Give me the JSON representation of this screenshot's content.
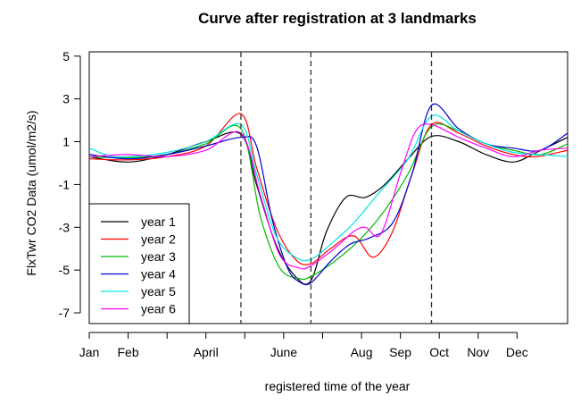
{
  "chart_data": {
    "type": "line",
    "title": "Curve after registration at 3 landmarks",
    "xlabel": "registered time of the year",
    "ylabel": "FlxTwr CO2 Data (umol/m2/s)",
    "xlim": [
      0,
      12.3
    ],
    "ylim": [
      -7.5,
      5.2
    ],
    "y_ticks": [
      5,
      3,
      1,
      -1,
      -3,
      -5,
      -7
    ],
    "x_ticks": [
      {
        "pos": 0,
        "label": "Jan"
      },
      {
        "pos": 1,
        "label": "Feb"
      },
      {
        "pos": 2,
        "label": ""
      },
      {
        "pos": 3,
        "label": "April"
      },
      {
        "pos": 4,
        "label": ""
      },
      {
        "pos": 5,
        "label": "June"
      },
      {
        "pos": 6,
        "label": ""
      },
      {
        "pos": 7,
        "label": "Aug"
      },
      {
        "pos": 8,
        "label": "Sep"
      },
      {
        "pos": 9,
        "label": "Oct"
      },
      {
        "pos": 10,
        "label": "Nov"
      },
      {
        "pos": 11,
        "label": "Dec"
      }
    ],
    "landmarks": [
      3.9,
      5.7,
      8.8
    ],
    "legend_position": "bottom-left",
    "series": [
      {
        "name": "year 1",
        "color": "#000000",
        "points": [
          [
            0,
            0.3
          ],
          [
            1,
            0.05
          ],
          [
            2,
            0.4
          ],
          [
            3,
            1.0
          ],
          [
            3.9,
            1.35
          ],
          [
            4.3,
            -1.0
          ],
          [
            4.8,
            -3.8
          ],
          [
            5.3,
            -5.3
          ],
          [
            5.7,
            -5.5
          ],
          [
            6.1,
            -3.2
          ],
          [
            6.6,
            -1.6
          ],
          [
            7.1,
            -1.6
          ],
          [
            7.6,
            -1.0
          ],
          [
            8.2,
            0.2
          ],
          [
            8.8,
            1.25
          ],
          [
            9.5,
            1.0
          ],
          [
            10.2,
            0.4
          ],
          [
            10.9,
            0.05
          ],
          [
            11.5,
            0.5
          ],
          [
            12.3,
            1.2
          ]
        ]
      },
      {
        "name": "year 2",
        "color": "#ff0000",
        "points": [
          [
            0,
            0.2
          ],
          [
            1,
            0.15
          ],
          [
            2,
            0.3
          ],
          [
            3,
            0.8
          ],
          [
            3.9,
            2.3
          ],
          [
            4.3,
            -0.2
          ],
          [
            4.8,
            -3.0
          ],
          [
            5.3,
            -4.5
          ],
          [
            5.7,
            -4.7
          ],
          [
            6.2,
            -4.0
          ],
          [
            6.8,
            -3.4
          ],
          [
            7.3,
            -4.4
          ],
          [
            7.8,
            -3.2
          ],
          [
            8.3,
            -0.5
          ],
          [
            8.8,
            1.8
          ],
          [
            9.5,
            1.4
          ],
          [
            10.2,
            0.8
          ],
          [
            10.9,
            0.4
          ],
          [
            11.5,
            0.3
          ],
          [
            12.3,
            0.6
          ]
        ]
      },
      {
        "name": "year 3",
        "color": "#00bb00",
        "points": [
          [
            0,
            0.3
          ],
          [
            1,
            0.25
          ],
          [
            2,
            0.4
          ],
          [
            3,
            0.9
          ],
          [
            3.9,
            1.6
          ],
          [
            4.4,
            -2.5
          ],
          [
            4.9,
            -4.9
          ],
          [
            5.4,
            -5.4
          ],
          [
            5.7,
            -5.3
          ],
          [
            6.3,
            -4.6
          ],
          [
            7.0,
            -3.5
          ],
          [
            7.6,
            -2.2
          ],
          [
            8.2,
            -0.5
          ],
          [
            8.8,
            1.7
          ],
          [
            9.5,
            1.5
          ],
          [
            10.2,
            0.9
          ],
          [
            10.9,
            0.6
          ],
          [
            11.6,
            0.4
          ],
          [
            12.3,
            0.9
          ]
        ]
      },
      {
        "name": "year 4",
        "color": "#0000cc",
        "points": [
          [
            0,
            0.4
          ],
          [
            1,
            0.2
          ],
          [
            2,
            0.4
          ],
          [
            3,
            0.8
          ],
          [
            3.9,
            1.2
          ],
          [
            4.3,
            0.8
          ],
          [
            4.7,
            -2.6
          ],
          [
            5.1,
            -4.9
          ],
          [
            5.4,
            -5.55
          ],
          [
            5.7,
            -5.6
          ],
          [
            6.2,
            -4.6
          ],
          [
            6.7,
            -3.8
          ],
          [
            7.2,
            -3.5
          ],
          [
            7.8,
            -2.8
          ],
          [
            8.3,
            -0.5
          ],
          [
            8.8,
            2.7
          ],
          [
            9.5,
            1.6
          ],
          [
            10.2,
            0.9
          ],
          [
            10.9,
            0.7
          ],
          [
            11.6,
            0.6
          ],
          [
            12.3,
            1.4
          ]
        ]
      },
      {
        "name": "year 5",
        "color": "#00e5e5",
        "points": [
          [
            0,
            0.7
          ],
          [
            0.5,
            0.35
          ],
          [
            1,
            0.3
          ],
          [
            2,
            0.5
          ],
          [
            3,
            1.0
          ],
          [
            3.9,
            1.8
          ],
          [
            4.3,
            -0.5
          ],
          [
            4.8,
            -3.4
          ],
          [
            5.3,
            -4.4
          ],
          [
            5.7,
            -4.5
          ],
          [
            6.2,
            -3.8
          ],
          [
            6.8,
            -2.8
          ],
          [
            7.4,
            -1.5
          ],
          [
            8.2,
            0.2
          ],
          [
            8.8,
            2.2
          ],
          [
            9.5,
            1.5
          ],
          [
            10.2,
            0.9
          ],
          [
            10.9,
            0.5
          ],
          [
            11.6,
            0.4
          ],
          [
            12.3,
            0.3
          ]
        ]
      },
      {
        "name": "year 6",
        "color": "#ff00ff",
        "points": [
          [
            0,
            0.3
          ],
          [
            1,
            0.4
          ],
          [
            2,
            0.3
          ],
          [
            3,
            0.6
          ],
          [
            3.9,
            1.4
          ],
          [
            4.4,
            -1.5
          ],
          [
            4.9,
            -4.3
          ],
          [
            5.4,
            -4.9
          ],
          [
            5.7,
            -4.8
          ],
          [
            6.3,
            -4.0
          ],
          [
            6.8,
            -3.2
          ],
          [
            7.1,
            -3.0
          ],
          [
            7.5,
            -3.3
          ],
          [
            8.0,
            -0.5
          ],
          [
            8.4,
            1.5
          ],
          [
            8.8,
            1.8
          ],
          [
            9.5,
            1.2
          ],
          [
            10.2,
            0.7
          ],
          [
            10.9,
            0.3
          ],
          [
            11.6,
            0.6
          ],
          [
            12.3,
            0.7
          ]
        ]
      }
    ]
  }
}
